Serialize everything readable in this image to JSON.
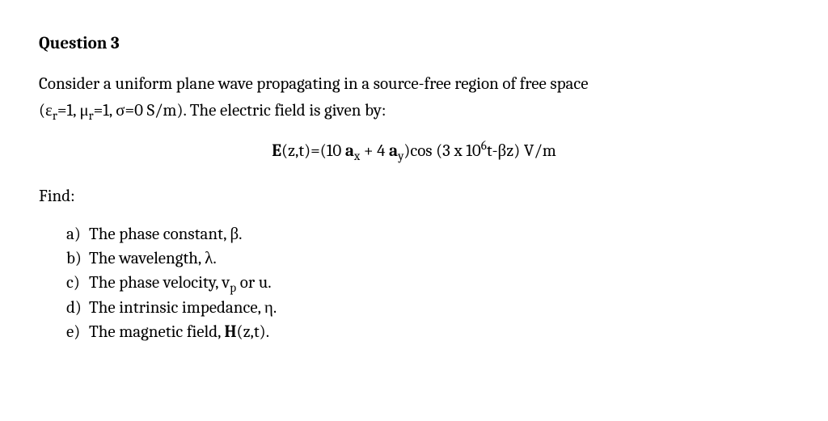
{
  "title": "Question 3",
  "prompt_line1_pre": "Consider a uniform plane wave propagating in a source-free region of free space",
  "params_open": "(ε",
  "params_r1": "r",
  "params_eq1": "=1, μ",
  "params_r2": "r",
  "params_eq2": "=1, σ=0 S/m).  The electric field is given by:",
  "eq_E": "E",
  "eq_args": "(z,t)=(10 ",
  "eq_a1": "a",
  "eq_a1sub": "x",
  "eq_plus": " + 4 ",
  "eq_a2": "a",
  "eq_a2sub": "y",
  "eq_after": ")cos (3 x 10",
  "eq_exp": "6",
  "eq_tail": "t-βz)  V/m",
  "find": "Find:",
  "parts": {
    "a": {
      "lab": "a)",
      "t1": "The phase constant, β."
    },
    "b": {
      "lab": "b)",
      "t1": "The wavelength, λ."
    },
    "c": {
      "lab": "c)",
      "t1": "The phase velocity, v",
      "sub": "p",
      "t2": " or u."
    },
    "d": {
      "lab": "d)",
      "t1": "The intrinsic impedance, η."
    },
    "e": {
      "lab": "e)",
      "t1": "The magnetic field, ",
      "bold": "H",
      "t2": "(z,t)."
    }
  }
}
